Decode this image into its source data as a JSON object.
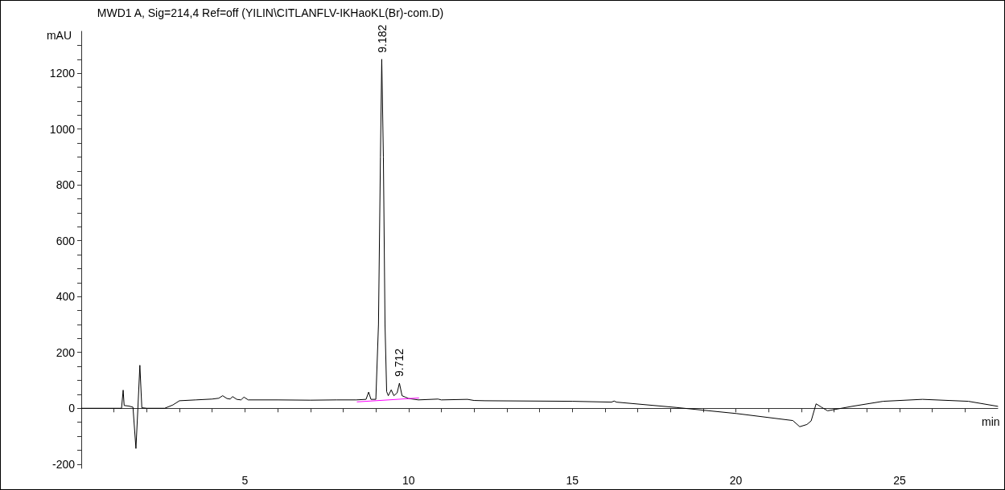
{
  "chart_data": {
    "type": "line",
    "title": "MWD1 A, Sig=214,4 Ref=off (YILIN\\CITLANFLV-IKHaoKL(Br)-com.D)",
    "xlabel": "min",
    "ylabel": "mAU",
    "xlim": [
      0,
      28
    ],
    "ylim": [
      -215,
      1350
    ],
    "xticks": [
      {
        "value": 1,
        "label": null
      },
      {
        "value": 2,
        "label": null
      },
      {
        "value": 3,
        "label": null
      },
      {
        "value": 4,
        "label": null
      },
      5,
      {
        "value": 6,
        "label": null
      },
      {
        "value": 7,
        "label": null
      },
      {
        "value": 8,
        "label": null
      },
      {
        "value": 9,
        "label": null
      },
      10,
      {
        "value": 11,
        "label": null
      },
      {
        "value": 12,
        "label": null
      },
      {
        "value": 13,
        "label": null
      },
      {
        "value": 14,
        "label": null
      },
      15,
      {
        "value": 16,
        "label": null
      },
      {
        "value": 17,
        "label": null
      },
      {
        "value": 18,
        "label": null
      },
      {
        "value": 19,
        "label": null
      },
      20,
      {
        "value": 21,
        "label": null
      },
      {
        "value": 22,
        "label": null
      },
      {
        "value": 23,
        "label": null
      },
      {
        "value": 24,
        "label": null
      },
      25,
      {
        "value": 26,
        "label": null
      },
      {
        "value": 27,
        "label": null
      }
    ],
    "yticks": [
      -200,
      {
        "value": -150,
        "label": null
      },
      {
        "value": -100,
        "label": null
      },
      {
        "value": -50,
        "label": null
      },
      0,
      {
        "value": 50,
        "label": null
      },
      {
        "value": 100,
        "label": null
      },
      {
        "value": 150,
        "label": null
      },
      200,
      {
        "value": 250,
        "label": null
      },
      {
        "value": 300,
        "label": null
      },
      {
        "value": 350,
        "label": null
      },
      400,
      {
        "value": 450,
        "label": null
      },
      {
        "value": 500,
        "label": null
      },
      {
        "value": 550,
        "label": null
      },
      600,
      {
        "value": 650,
        "label": null
      },
      {
        "value": 700,
        "label": null
      },
      {
        "value": 750,
        "label": null
      },
      800,
      {
        "value": 850,
        "label": null
      },
      {
        "value": 900,
        "label": null
      },
      {
        "value": 950,
        "label": null
      },
      1000,
      {
        "value": 1050,
        "label": null
      },
      {
        "value": 1100,
        "label": null
      },
      {
        "value": 1150,
        "label": null
      },
      1200,
      {
        "value": 1250,
        "label": null
      },
      {
        "value": 1300,
        "label": null
      }
    ],
    "marker": "none",
    "line_style": "solid",
    "series": [
      {
        "color": "#000000",
        "x": [
          0,
          1.23,
          1.28,
          1.31,
          1.45,
          1.58,
          1.67,
          1.73,
          1.79,
          1.85,
          2.0,
          2.55,
          2.8,
          3.0,
          3.5,
          4.0,
          4.2,
          4.32,
          4.45,
          4.55,
          4.62,
          4.75,
          4.88,
          4.97,
          5.1,
          6.0,
          7.0,
          7.8,
          8.4,
          8.7,
          8.78,
          8.85,
          9.0,
          9.08,
          9.14,
          9.18,
          9.23,
          9.28,
          9.33,
          9.38,
          9.47,
          9.55,
          9.65,
          9.72,
          9.8,
          9.9,
          10.0,
          10.3,
          10.9,
          11.0,
          11.8,
          12.0,
          12.34,
          15.0,
          16.2,
          16.28,
          16.35,
          18.17,
          20.03,
          21.74,
          21.95,
          22.17,
          22.3,
          22.45,
          22.6,
          22.8,
          23.55,
          24.5,
          25.7,
          27.1,
          28.0
        ],
        "values": [
          0,
          0,
          65,
          10,
          8,
          4,
          -144,
          0,
          154,
          2,
          0,
          0,
          12,
          27,
          30,
          33,
          36,
          45,
          35,
          33,
          42,
          32,
          30,
          40,
          30,
          30,
          29,
          30,
          30,
          32,
          58,
          32,
          32,
          300,
          900,
          1250,
          900,
          300,
          60,
          45,
          66,
          45,
          55,
          90,
          45,
          40,
          35,
          30,
          33,
          30,
          32,
          28,
          27,
          25,
          22,
          26,
          22,
          3,
          -19,
          -44,
          -66,
          -58,
          -45,
          16,
          5,
          -9,
          7,
          25,
          32,
          25,
          7
        ]
      },
      {
        "type": "line",
        "color": "#ff00ff",
        "x": [
          8.43,
          9.39,
          10.31
        ],
        "values": [
          23,
          30,
          37
        ]
      }
    ],
    "annotations": [
      {
        "text": "9.182",
        "x": 9.182,
        "y": 1250
      },
      {
        "text": "9.712",
        "x": 9.712,
        "y": 90
      }
    ]
  }
}
